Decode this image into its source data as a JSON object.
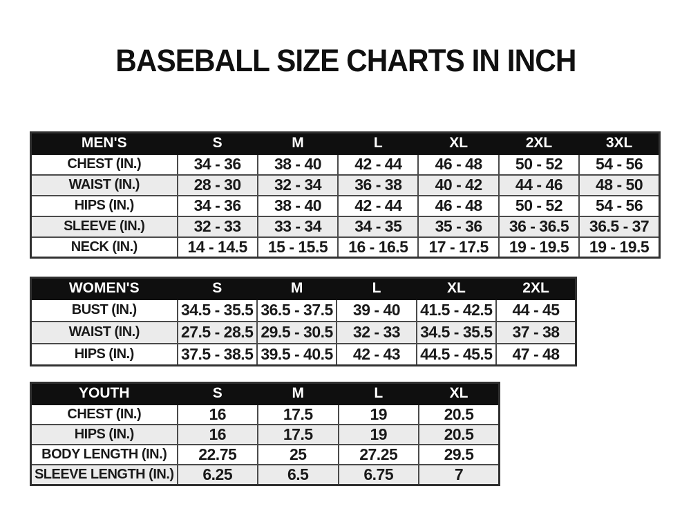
{
  "page": {
    "title": "BASEBALL SIZE CHARTS IN INCH"
  },
  "colors": {
    "header_bg": "#0f0f0f",
    "header_text": "#ffffff",
    "row_alt_bg": "#ebebeb",
    "border": "#4a4a4a",
    "text": "#191919",
    "page_bg": "#ffffff"
  },
  "tables": [
    {
      "id": "mens",
      "header_label": "MEN'S",
      "size_columns": [
        "S",
        "M",
        "L",
        "XL",
        "2XL",
        "3XL"
      ],
      "rows": [
        {
          "label": "CHEST (IN.)",
          "values": [
            "34 - 36",
            "38 - 40",
            "42 - 44",
            "46 - 48",
            "50 - 52",
            "54 - 56"
          ]
        },
        {
          "label": "WAIST (IN.)",
          "values": [
            "28 - 30",
            "32 - 34",
            "36 - 38",
            "40 - 42",
            "44 - 46",
            "48 - 50"
          ]
        },
        {
          "label": "HIPS (IN.)",
          "values": [
            "34 - 36",
            "38 - 40",
            "42 - 44",
            "46 - 48",
            "50 - 52",
            "54 - 56"
          ]
        },
        {
          "label": "SLEEVE (IN.)",
          "values": [
            "32 - 33",
            "33 - 34",
            "34 - 35",
            "35 - 36",
            "36 - 36.5",
            "36.5 - 37"
          ]
        },
        {
          "label": "NECK (IN.)",
          "values": [
            "14 - 14.5",
            "15 - 15.5",
            "16 - 16.5",
            "17 - 17.5",
            "19 - 19.5",
            "19 - 19.5"
          ]
        }
      ]
    },
    {
      "id": "womens",
      "header_label": "WOMEN'S",
      "size_columns": [
        "S",
        "M",
        "L",
        "XL",
        "2XL"
      ],
      "rows": [
        {
          "label": "BUST (IN.)",
          "values": [
            "34.5 - 35.5",
            "36.5 - 37.5",
            "39 - 40",
            "41.5 - 42.5",
            "44 - 45"
          ]
        },
        {
          "label": "WAIST (IN.)",
          "values": [
            "27.5 - 28.5",
            "29.5 - 30.5",
            "32 - 33",
            "34.5 - 35.5",
            "37 - 38"
          ]
        },
        {
          "label": "HIPS (IN.)",
          "values": [
            "37.5 - 38.5",
            "39.5 - 40.5",
            "42 - 43",
            "44.5 - 45.5",
            "47 - 48"
          ]
        }
      ]
    },
    {
      "id": "youth",
      "header_label": "YOUTH",
      "size_columns": [
        "S",
        "M",
        "L",
        "XL"
      ],
      "rows": [
        {
          "label": "CHEST (IN.)",
          "values": [
            "16",
            "17.5",
            "19",
            "20.5"
          ]
        },
        {
          "label": "HIPS (IN.)",
          "values": [
            "16",
            "17.5",
            "19",
            "20.5"
          ]
        },
        {
          "label": "BODY LENGTH (IN.)",
          "values": [
            "22.75",
            "25",
            "27.25",
            "29.5"
          ]
        },
        {
          "label": "SLEEVE LENGTH (IN.)",
          "values": [
            "6.25",
            "6.5",
            "6.75",
            "7"
          ]
        }
      ]
    }
  ]
}
